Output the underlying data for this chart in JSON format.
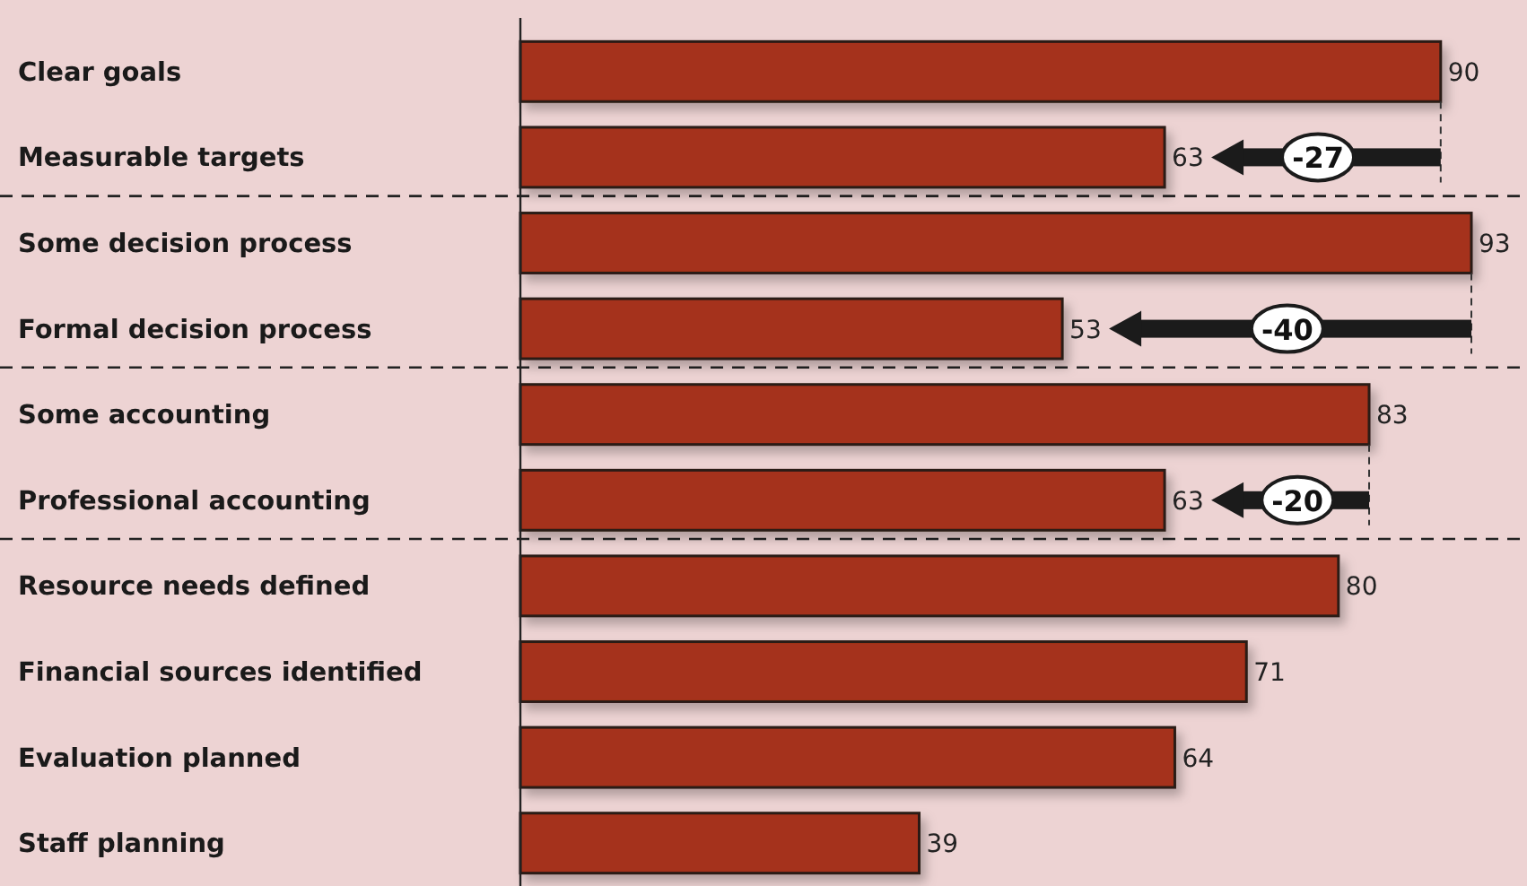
{
  "chart_data": {
    "type": "bar",
    "orientation": "horizontal",
    "categories": [
      "Clear goals",
      "Measurable targets",
      "Some decision process",
      "Formal decision process",
      "Some accounting",
      "Professional accounting",
      "Resource needs defined",
      "Financial sources identified",
      "Evaluation planned",
      "Staff planning"
    ],
    "values": [
      90,
      63,
      93,
      53,
      83,
      63,
      80,
      71,
      64,
      39
    ],
    "color": "#a5331a",
    "data_labels": true,
    "annotations": [
      {
        "text": "-27",
        "x": 78,
        "y": "Measurable targets"
      },
      {
        "text": "-40",
        "x": 75,
        "y": "Formal decision process"
      },
      {
        "text": "-20",
        "x": 76,
        "y": "Professional accounting"
      }
    ]
  }
}
